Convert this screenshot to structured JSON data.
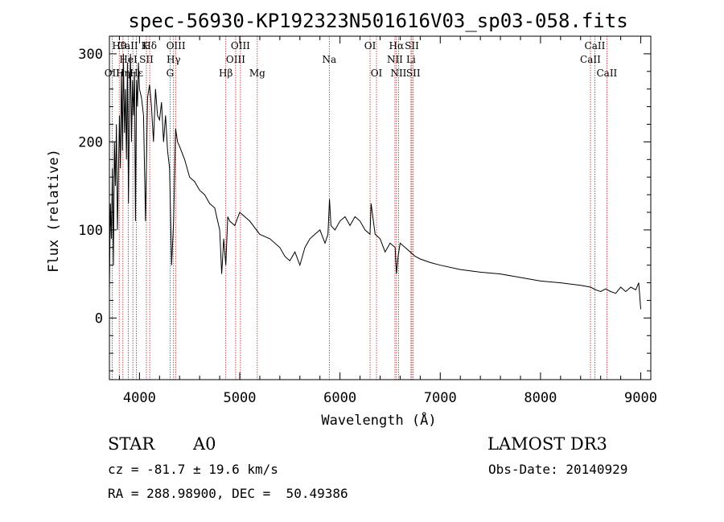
{
  "chart_data": {
    "type": "line",
    "title": "spec-56930-KP192323N501616V03_sp03-058.fits",
    "xlabel": "Wavelength (Å)",
    "ylabel": "Flux (relative)",
    "xlim": [
      3700,
      9100
    ],
    "ylim": [
      -70,
      320
    ],
    "xticks": [
      4000,
      5000,
      6000,
      7000,
      8000,
      9000
    ],
    "yticks": [
      0,
      100,
      200,
      300
    ],
    "grid": false,
    "series": [
      {
        "name": "spectrum",
        "x": [
          3700,
          3710,
          3720,
          3730,
          3740,
          3750,
          3760,
          3770,
          3780,
          3790,
          3800,
          3810,
          3820,
          3830,
          3840,
          3850,
          3860,
          3870,
          3880,
          3890,
          3900,
          3910,
          3920,
          3930,
          3940,
          3950,
          3960,
          3970,
          3980,
          3990,
          4000,
          4020,
          4040,
          4060,
          4080,
          4100,
          4120,
          4140,
          4160,
          4180,
          4200,
          4220,
          4240,
          4260,
          4280,
          4300,
          4320,
          4340,
          4360,
          4380,
          4400,
          4450,
          4500,
          4550,
          4600,
          4650,
          4700,
          4750,
          4800,
          4820,
          4840,
          4861,
          4880,
          4900,
          4950,
          5000,
          5100,
          5200,
          5300,
          5400,
          5450,
          5500,
          5550,
          5600,
          5650,
          5700,
          5750,
          5800,
          5850,
          5880,
          5895,
          5910,
          5950,
          6000,
          6050,
          6100,
          6150,
          6200,
          6250,
          6300,
          6310,
          6350,
          6400,
          6450,
          6500,
          6550,
          6563,
          6580,
          6600,
          6650,
          6700,
          6750,
          6800,
          6900,
          7000,
          7200,
          7400,
          7600,
          7800,
          8000,
          8200,
          8400,
          8500,
          8550,
          8600,
          8650,
          8700,
          8750,
          8800,
          8850,
          8900,
          8950,
          8980,
          9000
        ],
        "y": [
          30,
          130,
          90,
          170,
          60,
          200,
          150,
          220,
          100,
          160,
          230,
          170,
          280,
          190,
          300,
          210,
          260,
          180,
          290,
          130,
          240,
          300,
          200,
          270,
          230,
          280,
          110,
          270,
          240,
          290,
          260,
          250,
          230,
          110,
          250,
          265,
          240,
          200,
          260,
          230,
          225,
          245,
          200,
          230,
          190,
          170,
          60,
          110,
          215,
          200,
          195,
          180,
          160,
          155,
          145,
          140,
          130,
          125,
          100,
          50,
          90,
          60,
          115,
          110,
          105,
          120,
          110,
          95,
          90,
          80,
          70,
          65,
          75,
          60,
          80,
          90,
          95,
          100,
          85,
          95,
          135,
          105,
          100,
          110,
          115,
          105,
          115,
          110,
          100,
          95,
          130,
          95,
          90,
          75,
          85,
          80,
          50,
          70,
          85,
          80,
          75,
          70,
          67,
          63,
          60,
          55,
          52,
          50,
          46,
          42,
          40,
          37,
          35,
          32,
          30,
          33,
          30,
          28,
          35,
          30,
          35,
          32,
          40,
          10
        ]
      }
    ],
    "spectral_lines": [
      {
        "label": "OII",
        "wavelength": 3727,
        "row": 3
      },
      {
        "label": "Hθ",
        "wavelength": 3798,
        "row": 1
      },
      {
        "label": "Hη",
        "wavelength": 3835,
        "row": 3
      },
      {
        "label": "CaII K",
        "wavelength": 3934,
        "row": 1
      },
      {
        "label": "HeI",
        "wavelength": 3889,
        "row": 2
      },
      {
        "label": "Hε",
        "wavelength": 3970,
        "row": 3
      },
      {
        "label": "SII",
        "wavelength": 4069,
        "row": 2
      },
      {
        "label": "Hδ",
        "wavelength": 4102,
        "row": 1
      },
      {
        "label": "OIII",
        "wavelength": 4363,
        "row": 1
      },
      {
        "label": "Hγ",
        "wavelength": 4340,
        "row": 2
      },
      {
        "label": "G",
        "wavelength": 4305,
        "row": 3
      },
      {
        "label": "Hβ",
        "wavelength": 4861,
        "row": 3
      },
      {
        "label": "OIII",
        "wavelength": 5007,
        "row": 1
      },
      {
        "label": "OIII",
        "wavelength": 4959,
        "row": 2
      },
      {
        "label": "Mg",
        "wavelength": 5175,
        "row": 3
      },
      {
        "label": "Na",
        "wavelength": 5893,
        "row": 2
      },
      {
        "label": "OI",
        "wavelength": 6300,
        "row": 1
      },
      {
        "label": "OI",
        "wavelength": 6364,
        "row": 3
      },
      {
        "label": "Hα",
        "wavelength": 6563,
        "row": 1
      },
      {
        "label": "NII",
        "wavelength": 6548,
        "row": 2
      },
      {
        "label": "NII",
        "wavelength": 6584,
        "row": 3
      },
      {
        "label": "SII",
        "wavelength": 6717,
        "row": 1
      },
      {
        "label": "Li",
        "wavelength": 6708,
        "row": 2
      },
      {
        "label": "SII",
        "wavelength": 6731,
        "row": 3
      },
      {
        "label": "CaII",
        "wavelength": 8542,
        "row": 1
      },
      {
        "label": "CaII",
        "wavelength": 8498,
        "row": 2
      },
      {
        "label": "CaII",
        "wavelength": 8662,
        "row": 3
      }
    ]
  },
  "info": {
    "object_type": "STAR",
    "subclass": "A0",
    "survey": "LAMOST DR3",
    "cz": "cz = -81.7 ± 19.6 km/s",
    "obs_date": "Obs-Date: 20140929",
    "radec": "RA = 288.98900, DEC =  50.49386"
  },
  "colors": {
    "line": "#000000",
    "marker": "#b22222",
    "background": "#ffffff"
  }
}
